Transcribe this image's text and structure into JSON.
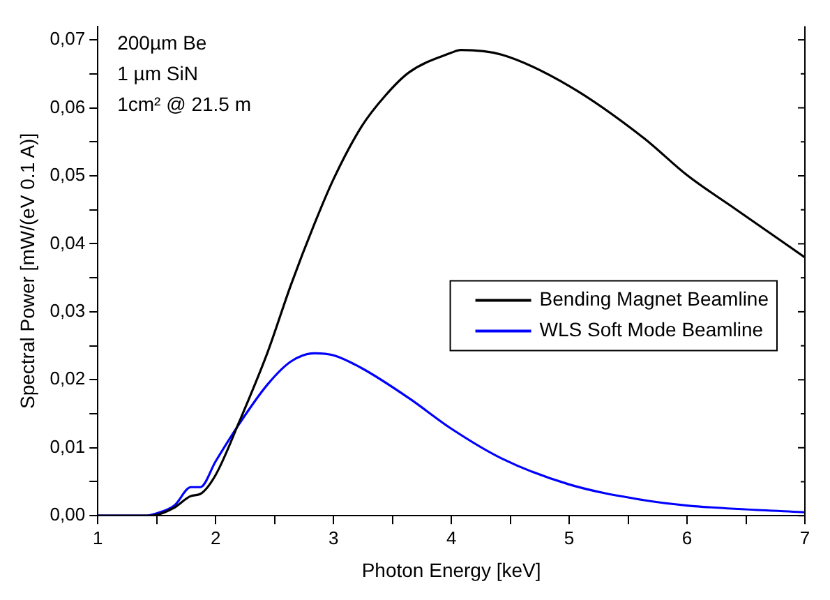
{
  "chart_data": {
    "type": "line",
    "xlabel": "Photon Energy [keV]",
    "ylabel": "Spectral Power [mW/(eV 0.1 A)]",
    "annotations": [
      "200µm Be",
      "1 µm SiN",
      "1cm² @ 21.5 m"
    ],
    "series": [
      {
        "name": "Bending Magnet Beamline",
        "color": "#000000",
        "x": [
          1,
          1.2,
          1.4,
          1.49,
          1.65,
          1.79,
          1.87,
          2.0,
          2.2,
          2.44,
          2.64,
          2.84,
          3.0,
          3.24,
          3.44,
          3.64,
          4.0,
          4.08,
          4.43,
          5.0,
          5.63,
          6.0,
          6.42,
          7.0
        ],
        "values": [
          0,
          0,
          0,
          0.0001,
          0.0012,
          0.0029,
          0.0032,
          0.006,
          0.0138,
          0.024,
          0.034,
          0.043,
          0.0495,
          0.0573,
          0.0618,
          0.0652,
          0.0681,
          0.0685,
          0.0678,
          0.0632,
          0.0556,
          0.0501,
          0.045,
          0.038
        ]
      },
      {
        "name": "WLS Soft Mode Beamline",
        "color": "#0000ff",
        "x": [
          1,
          1.2,
          1.4,
          1.49,
          1.65,
          1.79,
          1.87,
          2.0,
          2.2,
          2.44,
          2.64,
          2.84,
          3.0,
          3.24,
          3.64,
          4.0,
          4.43,
          5.0,
          5.63,
          6.0,
          7.0
        ],
        "values": [
          0,
          0,
          0,
          0.0003,
          0.0015,
          0.0042,
          0.0042,
          0.008,
          0.0135,
          0.0193,
          0.0227,
          0.0239,
          0.0236,
          0.0217,
          0.0173,
          0.0128,
          0.0084,
          0.0046,
          0.0023,
          0.0015,
          0.0005
        ]
      }
    ],
    "xlim": [
      1,
      7
    ],
    "xticks": [
      1,
      {
        "value": 1.5,
        "label": null
      },
      2,
      {
        "value": 2.5,
        "label": null
      },
      3,
      {
        "value": 3.5,
        "label": null
      },
      4,
      {
        "value": 4.5,
        "label": null
      },
      5,
      {
        "value": 5.5,
        "label": null
      },
      6,
      {
        "value": 6.5,
        "label": null
      },
      7
    ],
    "ylim": [
      0,
      0.072
    ],
    "yticks": [
      {
        "value": 0,
        "label": "0,00"
      },
      {
        "value": 0.005,
        "label": null
      },
      {
        "value": 0.01,
        "label": "0,01"
      },
      {
        "value": 0.015,
        "label": null
      },
      {
        "value": 0.02,
        "label": "0,02"
      },
      {
        "value": 0.025,
        "label": null
      },
      {
        "value": 0.03,
        "label": "0,03"
      },
      {
        "value": 0.035,
        "label": null
      },
      {
        "value": 0.04,
        "label": "0,04"
      },
      {
        "value": 0.045,
        "label": null
      },
      {
        "value": 0.05,
        "label": "0,05"
      },
      {
        "value": 0.055,
        "label": null
      },
      {
        "value": 0.06,
        "label": "0,06"
      },
      {
        "value": 0.065,
        "label": null
      },
      {
        "value": 0.07,
        "label": "0,07"
      }
    ],
    "grid": false,
    "legend": "right",
    "marker": "none",
    "line_style": "solid"
  }
}
